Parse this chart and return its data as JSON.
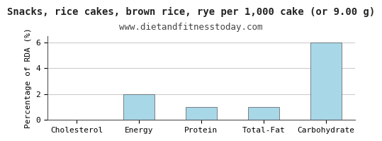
{
  "title": "Snacks, rice cakes, brown rice, rye per 1,000 cake (or 9.00 g)",
  "subtitle": "www.dietandfitnesstoday.com",
  "categories": [
    "Cholesterol",
    "Energy",
    "Protein",
    "Total-Fat",
    "Carbohydrate"
  ],
  "values": [
    0,
    2.0,
    1.0,
    1.0,
    6.0
  ],
  "bar_color": "#a8d8e8",
  "ylabel": "Percentage of RDA (%)",
  "ylim": [
    0,
    6.5
  ],
  "yticks": [
    0,
    2,
    4,
    6
  ],
  "background_color": "#ffffff",
  "plot_bg_color": "#ffffff",
  "border_color": "#555555",
  "title_fontsize": 10,
  "subtitle_fontsize": 9,
  "axis_label_fontsize": 8,
  "tick_fontsize": 8
}
